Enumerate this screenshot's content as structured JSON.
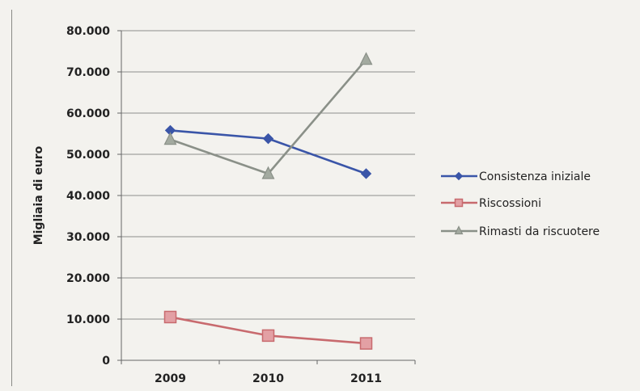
{
  "chart_data": {
    "type": "line",
    "title": "",
    "xlabel": "",
    "ylabel": "Migliaia di euro",
    "categories": [
      "2009",
      "2010",
      "2011"
    ],
    "ylim": [
      0,
      80000
    ],
    "y_ticks": [
      0,
      10000,
      20000,
      30000,
      40000,
      50000,
      60000,
      70000,
      80000
    ],
    "y_tick_labels": [
      "0",
      "10.000",
      "20.000",
      "30.000",
      "40.000",
      "50.000",
      "60.000",
      "70.000",
      "80.000"
    ],
    "grid": "horizontal",
    "legend_position": "right",
    "series": [
      {
        "name": "Consistenza iniziale",
        "values": [
          55800,
          53800,
          45300
        ],
        "color": "#3a55a8",
        "marker": "diamond"
      },
      {
        "name": "Riscossioni",
        "values": [
          10500,
          6000,
          4100
        ],
        "color": "#c86a6e",
        "marker": "square"
      },
      {
        "name": "Rimasti da riscuotere",
        "values": [
          53600,
          45300,
          73000
        ],
        "color": "#8a9088",
        "marker": "triangle"
      }
    ]
  }
}
